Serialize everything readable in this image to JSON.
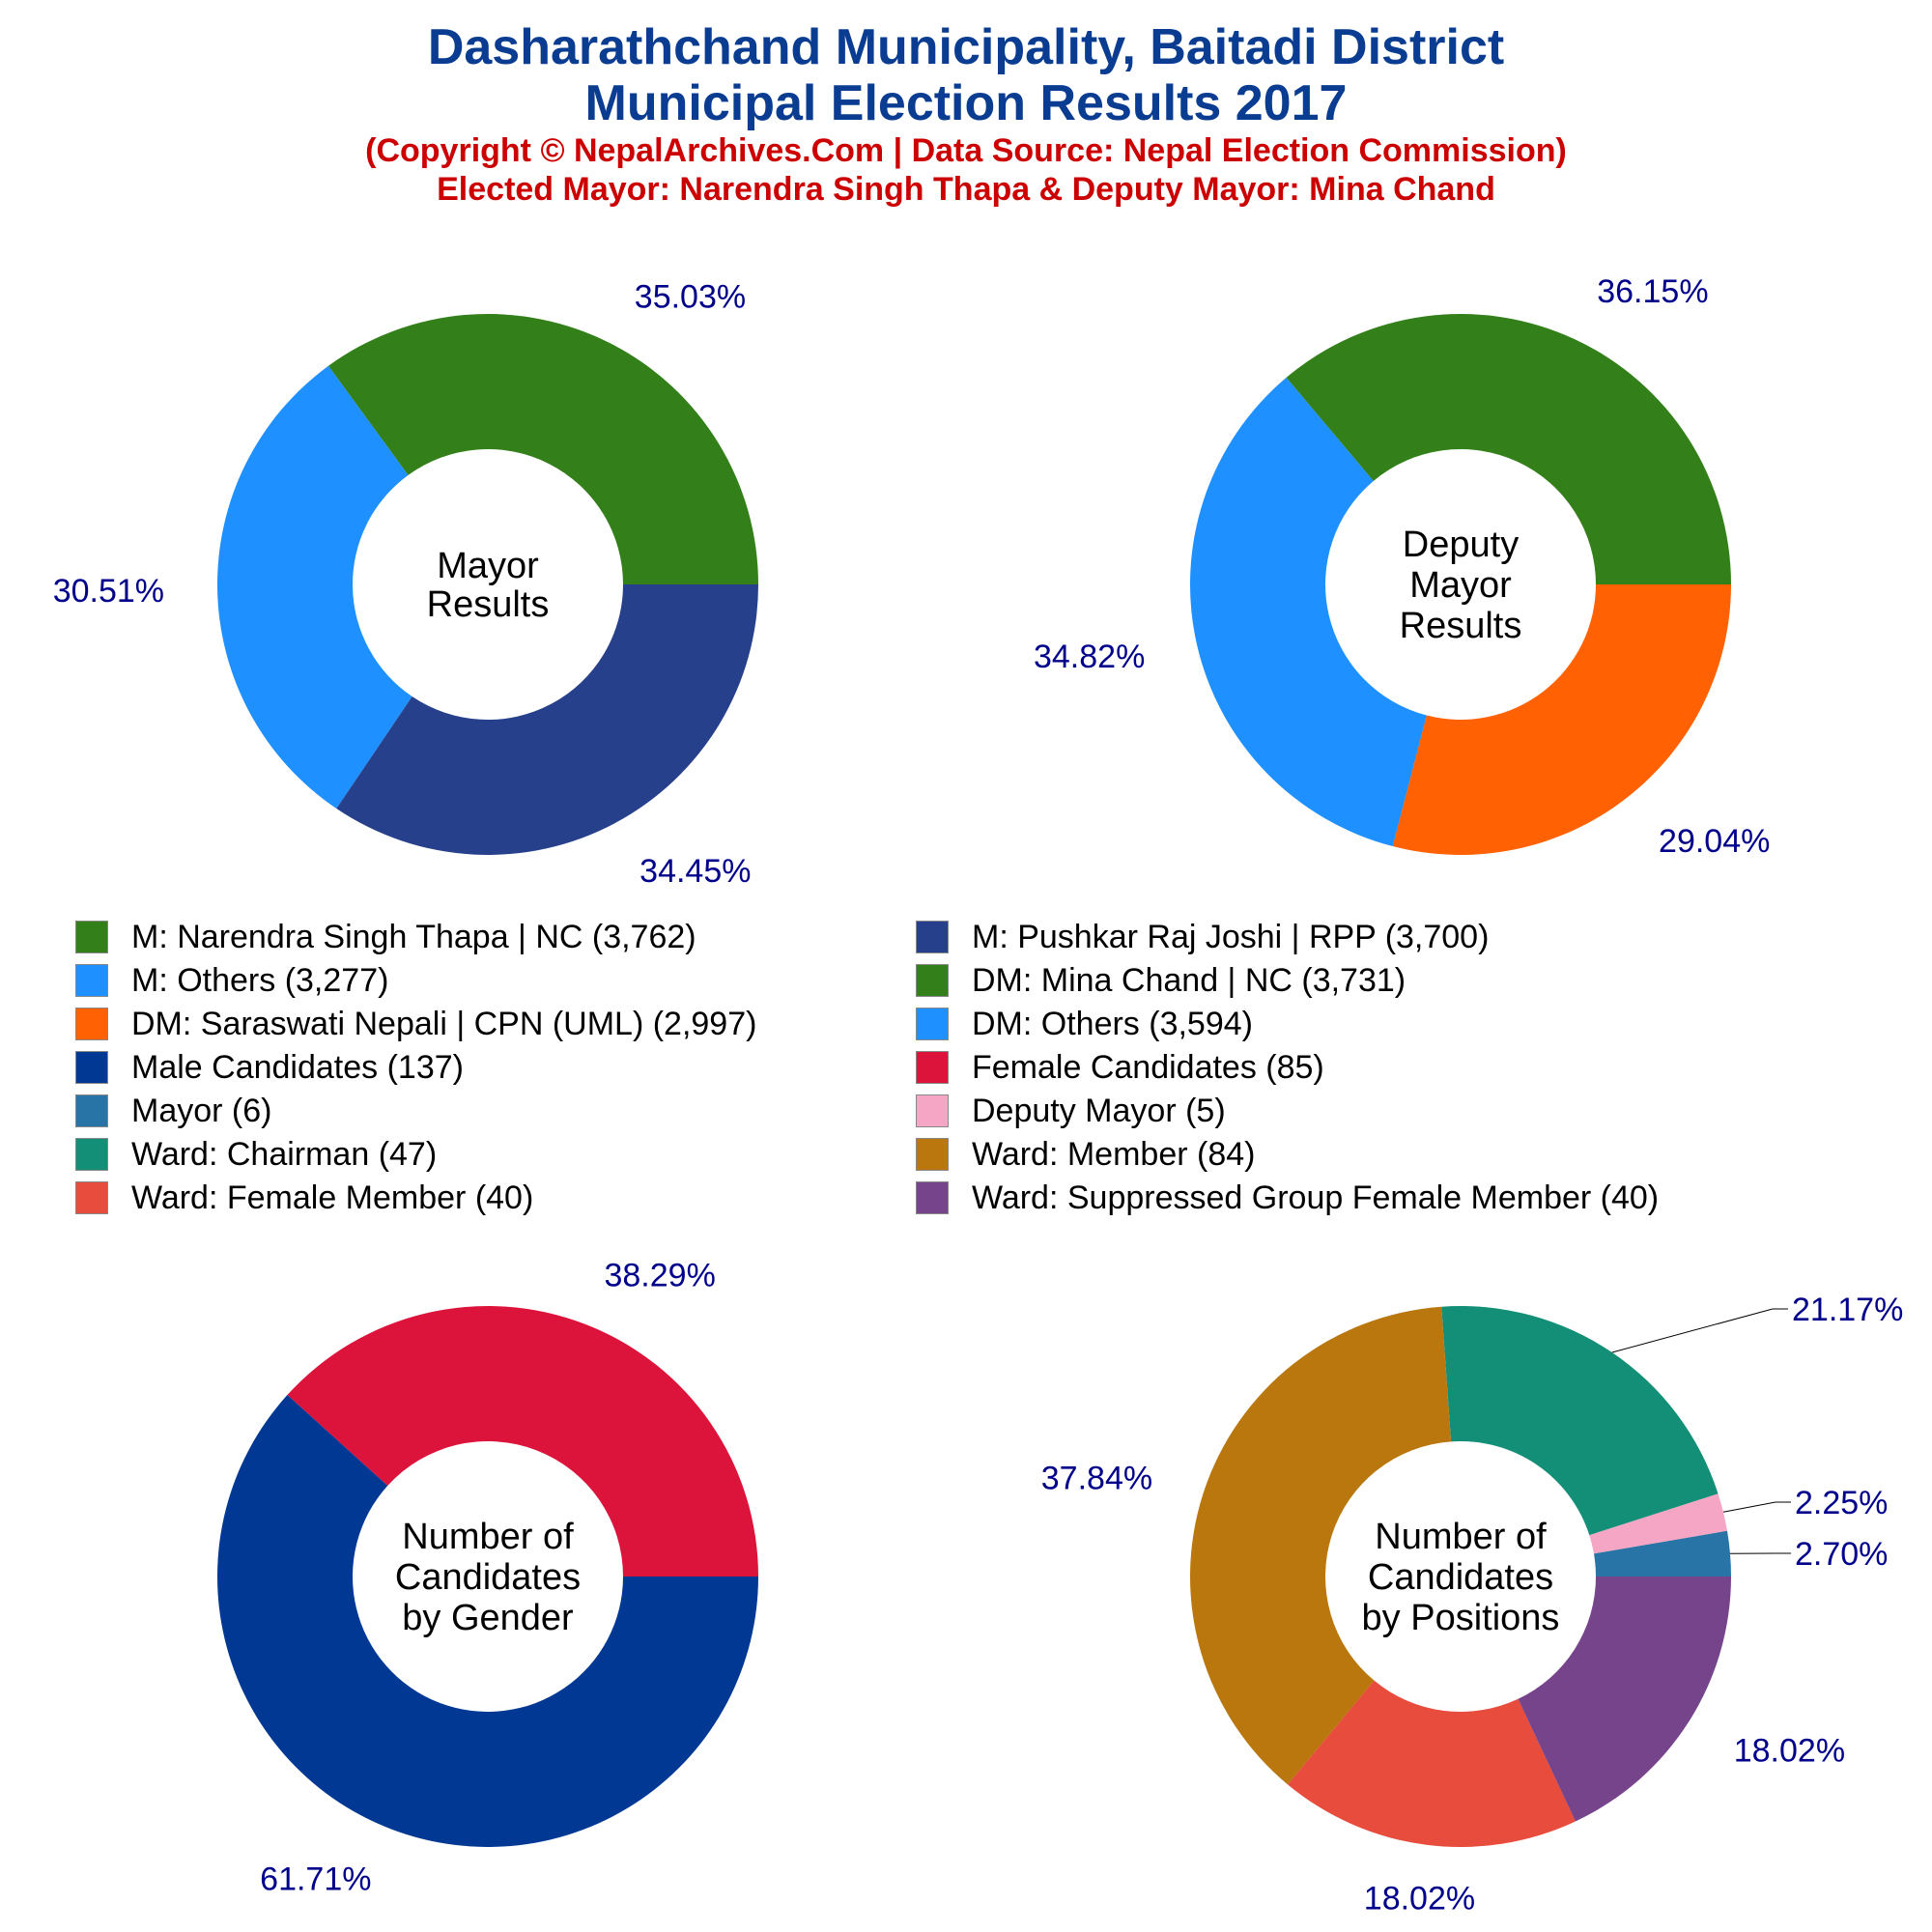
{
  "header": {
    "title_line1": "Dasharathchand Municipality, Baitadi District",
    "title_line2": "Municipal Election Results 2017",
    "copyright": "(Copyright © NepalArchives.Com | Data Source: Nepal Election Commission)",
    "elected": "Elected Mayor: Narendra Singh Thapa & Deputy Mayor: Mina Chand"
  },
  "legend": [
    {
      "label": "M: Narendra Singh Thapa | NC (3,762)",
      "color": "#33801a"
    },
    {
      "label": "M: Pushkar Raj Joshi | RPP (3,700)",
      "color": "#27408b"
    },
    {
      "label": "M: Others (3,277)",
      "color": "#1e90ff"
    },
    {
      "label": "DM: Mina Chand | NC (3,731)",
      "color": "#33801a"
    },
    {
      "label": "DM: Saraswati Nepali | CPN (UML) (2,997)",
      "color": "#ff6103"
    },
    {
      "label": "DM: Others (3,594)",
      "color": "#1e90ff"
    },
    {
      "label": "Male Candidates (137)",
      "color": "#003893"
    },
    {
      "label": "Female Candidates (85)",
      "color": "#dc143c"
    },
    {
      "label": "Mayor (6)",
      "color": "#2874a6"
    },
    {
      "label": "Deputy Mayor (5)",
      "color": "#f4a6c4"
    },
    {
      "label": "Ward: Chairman (47)",
      "color": "#148f77"
    },
    {
      "label": "Ward: Member (84)",
      "color": "#b9770e"
    },
    {
      "label": "Ward: Female Member (40)",
      "color": "#e74c3c"
    },
    {
      "label": "Ward: Suppressed Group Female Member (40)",
      "color": "#76448a"
    }
  ],
  "chart_data": [
    {
      "type": "pie",
      "title_lines": [
        "Mayor",
        "Results"
      ],
      "slices": [
        {
          "name": "M: Narendra Singh Thapa | NC",
          "value": 3762,
          "label": "35.03%",
          "color": "#33801a"
        },
        {
          "name": "M: Others",
          "value": 3277,
          "label": "30.51%",
          "color": "#1e90ff"
        },
        {
          "name": "M: Pushkar Raj Joshi | RPP",
          "value": 3700,
          "label": "34.45%",
          "color": "#27408b"
        }
      ]
    },
    {
      "type": "pie",
      "title_lines": [
        "Deputy",
        "Mayor",
        "Results"
      ],
      "slices": [
        {
          "name": "DM: Mina Chand | NC",
          "value": 3731,
          "label": "36.15%",
          "color": "#33801a"
        },
        {
          "name": "DM: Others",
          "value": 3594,
          "label": "34.82%",
          "color": "#1e90ff"
        },
        {
          "name": "DM: Saraswati Nepali | CPN (UML)",
          "value": 2997,
          "label": "29.04%",
          "color": "#ff6103"
        }
      ]
    },
    {
      "type": "pie",
      "title_lines": [
        "Number of",
        "Candidates",
        "by Gender"
      ],
      "slices": [
        {
          "name": "Female Candidates",
          "value": 85,
          "label": "38.29%",
          "color": "#dc143c"
        },
        {
          "name": "Male Candidates",
          "value": 137,
          "label": "61.71%",
          "color": "#003893"
        }
      ]
    },
    {
      "type": "pie",
      "title_lines": [
        "Number of",
        "Candidates",
        "by Positions"
      ],
      "slices": [
        {
          "name": "Mayor",
          "value": 6,
          "label": "2.70%",
          "color": "#2874a6"
        },
        {
          "name": "Deputy Mayor",
          "value": 5,
          "label": "2.25%",
          "color": "#f4a6c4"
        },
        {
          "name": "Ward: Chairman",
          "value": 47,
          "label": "21.17%",
          "color": "#148f77"
        },
        {
          "name": "Ward: Member",
          "value": 84,
          "label": "37.84%",
          "color": "#b9770e"
        },
        {
          "name": "Ward: Female Member",
          "value": 40,
          "label": "18.02%",
          "color": "#e74c3c"
        },
        {
          "name": "Ward: Suppressed Group Female Member",
          "value": 40,
          "label": "18.02%",
          "color": "#76448a"
        }
      ]
    }
  ]
}
